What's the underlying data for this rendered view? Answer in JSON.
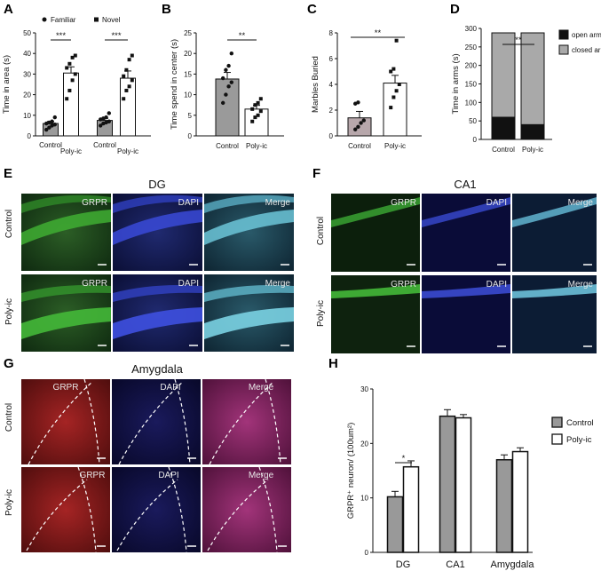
{
  "panels": {
    "A": {
      "letter": "A",
      "chart_data": {
        "type": "bar",
        "ylabel": "Time in area (s)",
        "ylim": [
          0,
          50
        ],
        "yticks": [
          0,
          10,
          20,
          30,
          40,
          50
        ],
        "groups": [
          "Control",
          "Poly-ic"
        ],
        "legend": [
          "Familiar",
          "Novel"
        ],
        "series": [
          {
            "name": "Familiar",
            "values": [
              6,
              7.5
            ],
            "err": [
              1,
              1
            ]
          },
          {
            "name": "Novel",
            "values": [
              30.5,
              28
            ],
            "err": [
              3,
              3.5
            ]
          }
        ],
        "points": {
          "Control-Familiar": [
            3,
            4,
            5,
            5.5,
            6,
            6.5,
            7,
            9
          ],
          "Control-Novel": [
            18,
            22,
            27,
            30,
            33,
            35,
            38,
            39
          ],
          "Poly-ic-Familiar": [
            5,
            6,
            6.5,
            7,
            8,
            8.5,
            9,
            11
          ],
          "Poly-ic-Novel": [
            18,
            22,
            24,
            27,
            29,
            32,
            37,
            39
          ]
        },
        "significance": [
          "***",
          "***"
        ]
      }
    },
    "B": {
      "letter": "B",
      "chart_data": {
        "type": "bar",
        "ylabel": "Time spend in center (s)",
        "ylim": [
          0,
          25
        ],
        "yticks": [
          0,
          5,
          10,
          15,
          20,
          25
        ],
        "categories": [
          "Control",
          "Poly-ic"
        ],
        "values": [
          13.8,
          6.5
        ],
        "err": [
          1.6,
          0.9
        ],
        "points": {
          "Control": [
            8,
            10,
            12,
            13,
            14,
            16,
            17,
            20
          ],
          "Poly-ic": [
            3.5,
            4.5,
            5,
            6,
            6.5,
            7.5,
            8,
            9
          ]
        },
        "significance": "**"
      }
    },
    "C": {
      "letter": "C",
      "chart_data": {
        "type": "bar",
        "ylabel": "Marbles Buried",
        "ylim": [
          0,
          8
        ],
        "yticks": [
          0,
          2,
          4,
          6,
          8
        ],
        "categories": [
          "Control",
          "Poly-ic"
        ],
        "values": [
          1.4,
          4.1
        ],
        "err": [
          0.5,
          0.6
        ],
        "points": {
          "Control": [
            0.5,
            0.7,
            1,
            1.2,
            2.5,
            2.6
          ],
          "Poly-ic": [
            2.2,
            3,
            3.5,
            4,
            5,
            5.2,
            7.4
          ]
        },
        "significance": "**"
      }
    },
    "D": {
      "letter": "D",
      "chart_data": {
        "type": "bar",
        "stacked": true,
        "ylabel": "Time in arms (s)",
        "ylim": [
          0,
          300
        ],
        "yticks": [
          0,
          50,
          100,
          150,
          200,
          250,
          300
        ],
        "categories": [
          "Control",
          "Poly-ic"
        ],
        "series": [
          {
            "name": "open arms",
            "values": [
              60,
              40
            ],
            "color": "#111111"
          },
          {
            "name": "closed arms",
            "values": [
              228,
              248
            ],
            "color": "#a9a9a9"
          }
        ],
        "significance": "**"
      }
    },
    "E": {
      "letter": "E",
      "title": "DG",
      "rows": [
        "Control",
        "Poly-ic"
      ],
      "cols": [
        "GRPR",
        "DAPI",
        "Merge"
      ]
    },
    "F": {
      "letter": "F",
      "title": "CA1",
      "rows": [
        "Control",
        "Poly-ic"
      ],
      "cols": [
        "GRPR",
        "DAPI",
        "Merge"
      ]
    },
    "G": {
      "letter": "G",
      "title": "Amygdala",
      "rows": [
        "Control",
        "Poly-ic"
      ],
      "cols": [
        "GRPR",
        "DAPI",
        "Merge"
      ]
    },
    "H": {
      "letter": "H",
      "chart_data": {
        "type": "bar",
        "ylabel": "GRPR⁺ neuron/ (100um²)",
        "ylim": [
          0,
          30
        ],
        "yticks": [
          0,
          10,
          20,
          30
        ],
        "categories": [
          "DG",
          "CA1",
          "Amygdala"
        ],
        "series": [
          {
            "name": "Control",
            "values": [
              10.2,
              25,
              17
            ],
            "err": [
              1,
              1.2,
              0.9
            ],
            "color": "#999999"
          },
          {
            "name": "Poly-ic",
            "values": [
              15.7,
              24.7,
              18.5
            ],
            "err": [
              1.1,
              0.6,
              0.7
            ],
            "color": "#ffffff"
          }
        ],
        "significance": "*"
      }
    }
  }
}
